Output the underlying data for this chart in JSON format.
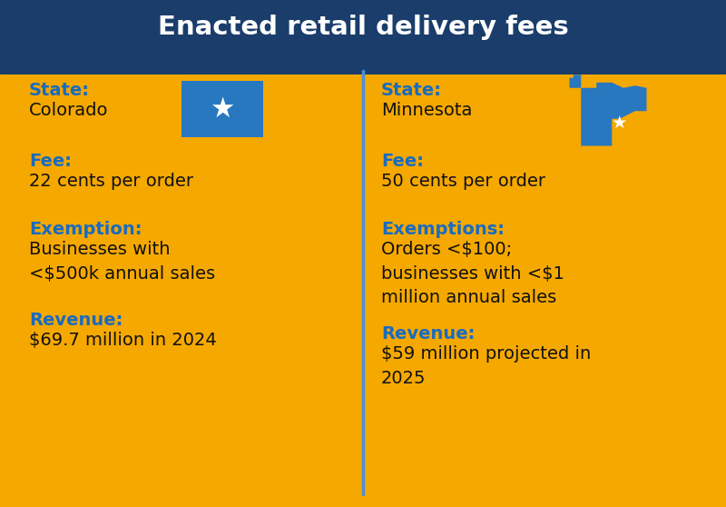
{
  "title": "Enacted retail delivery fees",
  "title_bg": "#1a3d6b",
  "title_color": "#ffffff",
  "body_bg": "#f5a800",
  "divider_color": "#4a90d9",
  "label_color": "#1a6bbf",
  "text_color": "#111111",
  "figsize": [
    8.0,
    5.58
  ],
  "dpi": 100,
  "left": {
    "state_label": "State:",
    "state_name": "Colorado",
    "fee_label": "Fee:",
    "fee_value": "22 cents per order",
    "exemption_label": "Exemption:",
    "exemption_value": "Businesses with\n<$500k annual sales",
    "revenue_label": "Revenue:",
    "revenue_value": "$69.7 million in 2024"
  },
  "right": {
    "state_label": "State:",
    "state_name": "Minnesota",
    "fee_label": "Fee:",
    "fee_value": "50 cents per order",
    "exemption_label": "Exemptions:",
    "exemption_value": "Orders <$100;\nbusinesses with <$1\nmillion annual sales",
    "revenue_label": "Revenue:",
    "revenue_value": "$59 million projected in\n2025"
  }
}
